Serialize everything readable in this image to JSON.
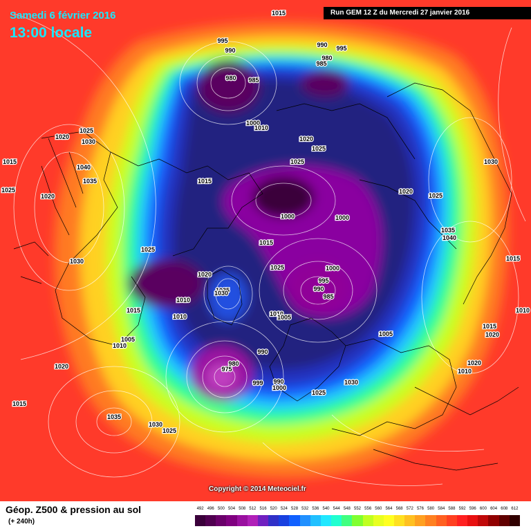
{
  "header": {
    "date": "Samedi 6 février 2016",
    "time": "13:00 locale",
    "run": "Run GEM 12 Z du Mercredi 27 janvier 2016"
  },
  "copyright": "Copyright © 2014 Meteociel.fr",
  "footer": {
    "title": "Géop. Z500 & pression au sol",
    "subtitle": "(+ 240h)"
  },
  "scale": {
    "values": [
      "492",
      "496",
      "500",
      "504",
      "508",
      "512",
      "516",
      "520",
      "524",
      "528",
      "532",
      "536",
      "540",
      "544",
      "548",
      "552",
      "556",
      "560",
      "564",
      "568",
      "572",
      "576",
      "580",
      "584",
      "588",
      "592",
      "596",
      "600",
      "604",
      "608",
      "612"
    ],
    "colors": [
      "#3a003a",
      "#500050",
      "#6a006a",
      "#800080",
      "#9a10a0",
      "#b020b8",
      "#7020c0",
      "#3030c8",
      "#1840e0",
      "#1060ff",
      "#2090ff",
      "#20c0ff",
      "#20e8ff",
      "#20ffd0",
      "#40ff80",
      "#80ff30",
      "#c0ff20",
      "#e8ff20",
      "#ffff20",
      "#ffe020",
      "#ffc020",
      "#ffa020",
      "#ff8020",
      "#ff6020",
      "#ff4020",
      "#ff2020",
      "#e81010",
      "#c00808",
      "#900000",
      "#600000",
      "#300000"
    ]
  },
  "pressure_labels": [
    "1015",
    "995",
    "990",
    "995",
    "980",
    "990",
    "985",
    "980",
    "985",
    "1025",
    "1020",
    "1030",
    "1000",
    "1010",
    "1020",
    "1025",
    "1025",
    "1030",
    "1040",
    "1015",
    "1035",
    "1020",
    "1025",
    "1015",
    "1020",
    "1025",
    "1000",
    "1000",
    "1035",
    "1040",
    "1025",
    "1030",
    "1015",
    "1015",
    "1020",
    "1000",
    "995",
    "990",
    "985",
    "1025",
    "1035",
    "1030",
    "1010",
    "1015",
    "1010",
    "1010",
    "1005",
    "1005",
    "1005",
    "1010",
    "1010",
    "990",
    "980",
    "975",
    "990",
    "999",
    "1000",
    "1030",
    "1025",
    "1020",
    "1015",
    "1015",
    "1020",
    "1035",
    "1030",
    "1025",
    "1010",
    "1020"
  ]
}
